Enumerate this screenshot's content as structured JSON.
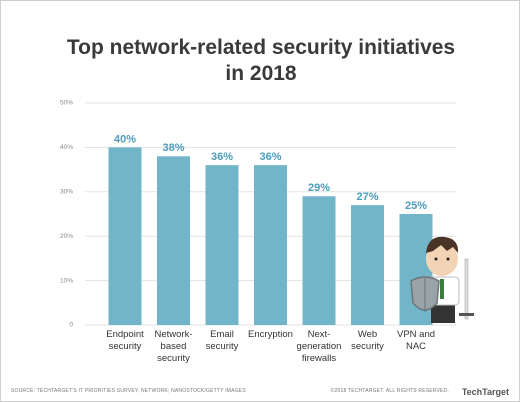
{
  "chart_data": {
    "type": "bar",
    "title": "Top network-related security initiatives in 2018",
    "categories": [
      "Endpoint security",
      "Network-based security",
      "Email security",
      "Encryption",
      "Next-generation firewalls",
      "Web security",
      "VPN and NAC"
    ],
    "values": [
      40,
      38,
      36,
      36,
      29,
      27,
      25
    ],
    "value_labels": [
      "40%",
      "38%",
      "36%",
      "36%",
      "29%",
      "27%",
      "25%"
    ],
    "color": "#72b5c8",
    "label_color": "#4a9dbd",
    "ylim": [
      0,
      50
    ],
    "yticks": [
      0,
      {
        "value": 10,
        "label": "10%"
      },
      {
        "value": 20,
        "label": "20%"
      },
      {
        "value": 30,
        "label": "30%"
      },
      {
        "value": 40,
        "label": "40%"
      },
      {
        "value": 50,
        "label": "50%"
      }
    ],
    "grid": true,
    "source": "SOURCE: TECHTARGET'S IT PRIORITIES SURVEY, NETWORK; NANOSTOCK/GETTY IMAGES",
    "copyright": "©2018 TECHTARGET. ALL RIGHTS RESERVED.",
    "logo": "TechTarget"
  }
}
